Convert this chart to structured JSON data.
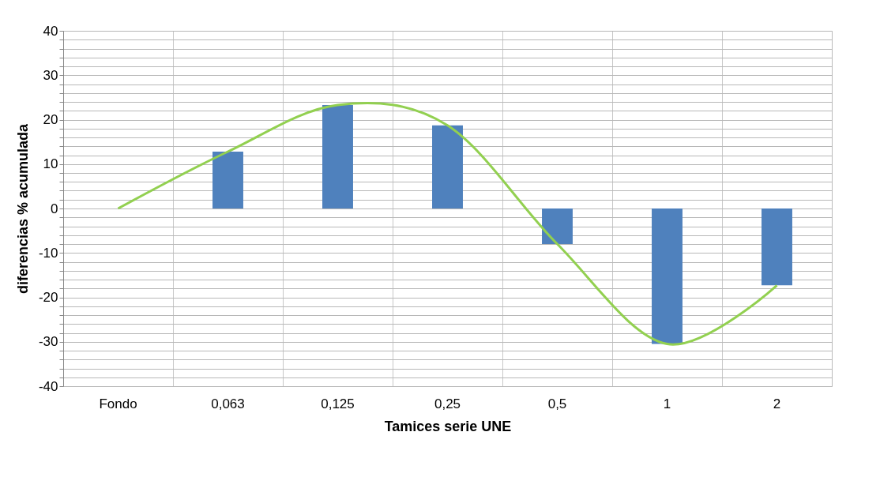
{
  "chart_data": {
    "type": "bar",
    "xlabel": "Tamices serie UNE",
    "ylabel": "diferencias % acumulada",
    "categories": [
      "Fondo",
      "0,063",
      "0,125",
      "0,25",
      "0,5",
      "1",
      "2"
    ],
    "series": [
      {
        "color": "#4f81bd",
        "values": [
          0,
          12.8,
          23.3,
          18.7,
          -8,
          -30.5,
          -17.3
        ]
      },
      {
        "type": "line",
        "color": "#92d050",
        "values": [
          0,
          12.8,
          23.3,
          18.7,
          -8,
          -30.5,
          -17.3
        ]
      }
    ],
    "ylim": [
      -40,
      40
    ],
    "yticks": [
      -40,
      {
        "value": -38,
        "label": null
      },
      {
        "value": -36,
        "label": null
      },
      {
        "value": -34,
        "label": null
      },
      {
        "value": -32,
        "label": null
      },
      -30,
      {
        "value": -28,
        "label": null
      },
      {
        "value": -26,
        "label": null
      },
      {
        "value": -24,
        "label": null
      },
      {
        "value": -22,
        "label": null
      },
      -20,
      {
        "value": -18,
        "label": null
      },
      {
        "value": -16,
        "label": null
      },
      {
        "value": -14,
        "label": null
      },
      {
        "value": -12,
        "label": null
      },
      -10,
      {
        "value": -8,
        "label": null
      },
      {
        "value": -6,
        "label": null
      },
      {
        "value": -4,
        "label": null
      },
      {
        "value": -2,
        "label": null
      },
      0,
      {
        "value": 2,
        "label": null
      },
      {
        "value": 4,
        "label": null
      },
      {
        "value": 6,
        "label": null
      },
      {
        "value": 8,
        "label": null
      },
      10,
      {
        "value": 12,
        "label": null
      },
      {
        "value": 14,
        "label": null
      },
      {
        "value": 16,
        "label": null
      },
      {
        "value": 18,
        "label": null
      },
      20,
      {
        "value": 22,
        "label": null
      },
      {
        "value": 24,
        "label": null
      },
      {
        "value": 26,
        "label": null
      },
      {
        "value": 28,
        "label": null
      },
      30,
      {
        "value": 32,
        "label": null
      },
      {
        "value": 34,
        "label": null
      },
      {
        "value": 36,
        "label": null
      },
      {
        "value": 38,
        "label": null
      },
      40
    ],
    "grid": true,
    "marker": "none",
    "line_style": "solid"
  }
}
